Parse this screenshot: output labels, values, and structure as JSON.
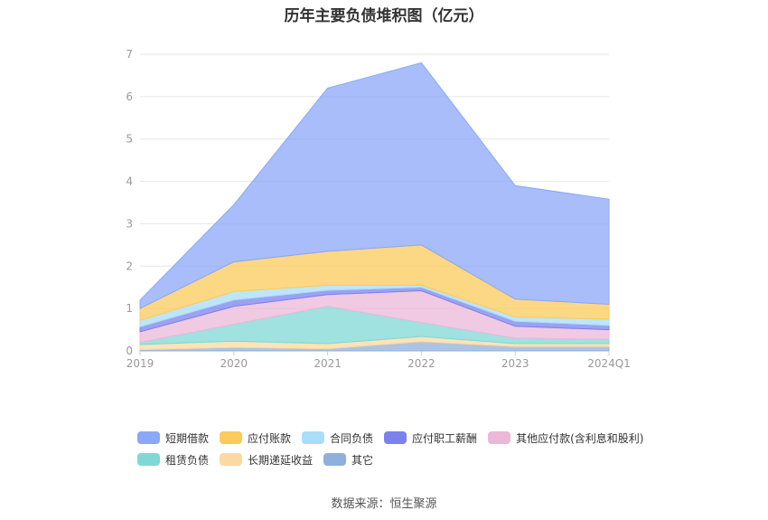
{
  "title": "历年主要负债堆积图（亿元）",
  "source": "数据来源：恒生聚源",
  "chart_data": {
    "type": "area",
    "stacked": true,
    "categories": [
      "2019",
      "2020",
      "2021",
      "2022",
      "2023",
      "2024Q1"
    ],
    "ylim": [
      0,
      7
    ],
    "yticks": [
      0,
      1,
      2,
      3,
      4,
      5,
      6,
      7
    ],
    "grid": true,
    "legend_position": "bottom",
    "series": [
      {
        "name": "其它",
        "color": "#8fb0dd",
        "values": [
          0.03,
          0.08,
          0.05,
          0.22,
          0.1,
          0.1
        ]
      },
      {
        "name": "长期递延收益",
        "color": "#fcd9a0",
        "values": [
          0.12,
          0.15,
          0.12,
          0.12,
          0.07,
          0.07
        ]
      },
      {
        "name": "租赁负债",
        "color": "#7fd8d5",
        "values": [
          0.05,
          0.4,
          0.88,
          0.33,
          0.13,
          0.1
        ]
      },
      {
        "name": "其他应付款(含利息和股利)",
        "color": "#ebb8d8",
        "values": [
          0.25,
          0.42,
          0.28,
          0.75,
          0.28,
          0.23
        ]
      },
      {
        "name": "应付职工薪酬",
        "color": "#7b82ee",
        "values": [
          0.12,
          0.15,
          0.1,
          0.08,
          0.12,
          0.1
        ]
      },
      {
        "name": "合同负债",
        "color": "#a8defa",
        "values": [
          0.15,
          0.2,
          0.12,
          0.05,
          0.1,
          0.15
        ]
      },
      {
        "name": "应付账款",
        "color": "#fccb5b",
        "values": [
          0.28,
          0.7,
          0.8,
          0.95,
          0.42,
          0.35
        ]
      },
      {
        "name": "短期借款",
        "color": "#8ba7f8",
        "values": [
          0.2,
          1.35,
          3.85,
          4.3,
          2.68,
          2.48
        ]
      }
    ]
  },
  "legend": {
    "row1": [
      {
        "label": "短期借款",
        "color": "#8ba7f8"
      },
      {
        "label": "应付账款",
        "color": "#fccb5b"
      },
      {
        "label": "合同负债",
        "color": "#a8defa"
      },
      {
        "label": "应付职工薪酬",
        "color": "#7b82ee"
      },
      {
        "label": "其他应付款(含利息和股利)",
        "color": "#ebb8d8"
      }
    ],
    "row2": [
      {
        "label": "租赁负债",
        "color": "#7fd8d5"
      },
      {
        "label": "长期递延收益",
        "color": "#fcd9a0"
      },
      {
        "label": "其它",
        "color": "#8fb0dd"
      }
    ]
  }
}
